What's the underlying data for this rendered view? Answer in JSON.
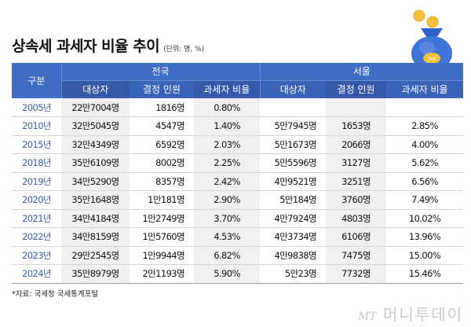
{
  "header": {
    "title": "상속세 과세자 비율 추이",
    "unit": "(단위: 명, %)"
  },
  "table": {
    "col_gubun": "구분",
    "groups": [
      "전국",
      "서울"
    ],
    "subcols": [
      "대상자",
      "결정 인원",
      "과세자 비율",
      "대상자",
      "결정 인원",
      "과세자 비율"
    ],
    "rows": [
      {
        "year": "2005년",
        "nat_target": "22만7004명",
        "nat_decided": "1816명",
        "nat_ratio": "0.80%",
        "seoul_target": "",
        "seoul_decided": "",
        "seoul_ratio": ""
      },
      {
        "year": "2010년",
        "nat_target": "32만5045명",
        "nat_decided": "4547명",
        "nat_ratio": "1.40%",
        "seoul_target": "5만7945명",
        "seoul_decided": "1653명",
        "seoul_ratio": "2.85%"
      },
      {
        "year": "2015년",
        "nat_target": "32만4349명",
        "nat_decided": "6592명",
        "nat_ratio": "2.03%",
        "seoul_target": "5만1673명",
        "seoul_decided": "2066명",
        "seoul_ratio": "4.00%"
      },
      {
        "year": "2018년",
        "nat_target": "35만6109명",
        "nat_decided": "8002명",
        "nat_ratio": "2.25%",
        "seoul_target": "5만5596명",
        "seoul_decided": "3127명",
        "seoul_ratio": "5.62%"
      },
      {
        "year": "2019년",
        "nat_target": "34만5290명",
        "nat_decided": "8357명",
        "nat_ratio": "2.42%",
        "seoul_target": "4만9521명",
        "seoul_decided": "3251명",
        "seoul_ratio": "6.56%"
      },
      {
        "year": "2020년",
        "nat_target": "35만1648명",
        "nat_decided": "1만181명",
        "nat_ratio": "2.90%",
        "seoul_target": "5만184명",
        "seoul_decided": "3760명",
        "seoul_ratio": "7.49%"
      },
      {
        "year": "2021년",
        "nat_target": "34만4184명",
        "nat_decided": "1만2749명",
        "nat_ratio": "3.70%",
        "seoul_target": "4만7924명",
        "seoul_decided": "4803명",
        "seoul_ratio": "10.02%"
      },
      {
        "year": "2022년",
        "nat_target": "34만8159명",
        "nat_decided": "1만5760명",
        "nat_ratio": "4.53%",
        "seoul_target": "4만3734명",
        "seoul_decided": "6106명",
        "seoul_ratio": "13.96%"
      },
      {
        "year": "2023년",
        "nat_target": "29만2545명",
        "nat_decided": "1만9944명",
        "nat_ratio": "6.82%",
        "seoul_target": "4만9838명",
        "seoul_decided": "7475명",
        "seoul_ratio": "15.00%"
      },
      {
        "year": "2024년",
        "nat_target": "35만8979명",
        "nat_decided": "2만1193명",
        "nat_ratio": "5.90%",
        "seoul_target": "5만23명",
        "seoul_decided": "7732명",
        "seoul_ratio": "15.46%"
      }
    ]
  },
  "footer": {
    "source": "*자료: 국세청 국세통계포털",
    "logo_mt": "MT",
    "logo_text": "머니투데이"
  },
  "illustration": {
    "bag_label": "TAX",
    "bag_color": "#3f74d8",
    "coin_color": "#f2c23a"
  },
  "colors": {
    "header_bg": "#3f6cc4",
    "year_text": "#3a5da8",
    "shade": "#f0f0f0"
  },
  "chart_data": {
    "type": "table",
    "title": "상속세 과세자 비율 추이",
    "subtitle": "(단위: 명, %)",
    "columns": [
      "구분",
      "전국 대상자",
      "전국 결정 인원",
      "전국 과세자 비율",
      "서울 대상자",
      "서울 결정 인원",
      "서울 과세자 비율"
    ],
    "categories": [
      "2005",
      "2010",
      "2015",
      "2018",
      "2019",
      "2020",
      "2021",
      "2022",
      "2023",
      "2024"
    ],
    "series": [
      {
        "name": "전국 대상자",
        "values": [
          227004,
          325045,
          324349,
          356109,
          345290,
          351648,
          344184,
          348159,
          292545,
          358979
        ]
      },
      {
        "name": "전국 결정 인원",
        "values": [
          1816,
          4547,
          6592,
          8002,
          8357,
          10181,
          12749,
          15760,
          19944,
          21193
        ]
      },
      {
        "name": "전국 과세자 비율(%)",
        "values": [
          0.8,
          1.4,
          2.03,
          2.25,
          2.42,
          2.9,
          3.7,
          4.53,
          6.82,
          5.9
        ]
      },
      {
        "name": "서울 대상자",
        "values": [
          null,
          57945,
          51673,
          55596,
          49521,
          50184,
          47924,
          43734,
          49838,
          50023
        ]
      },
      {
        "name": "서울 결정 인원",
        "values": [
          null,
          1653,
          2066,
          3127,
          3251,
          3760,
          4803,
          6106,
          7475,
          7732
        ]
      },
      {
        "name": "서울 과세자 비율(%)",
        "values": [
          null,
          2.85,
          4.0,
          5.62,
          6.56,
          7.49,
          10.02,
          13.96,
          15.0,
          15.46
        ]
      }
    ],
    "source": "*자료: 국세청 국세통계포털"
  }
}
